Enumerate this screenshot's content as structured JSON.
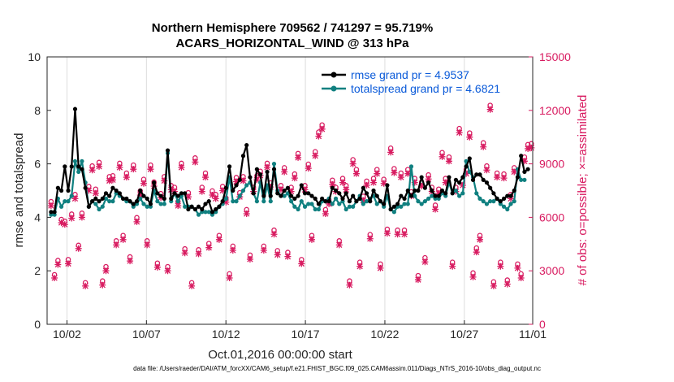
{
  "chart_data": {
    "type": "line",
    "title": "Northern Hemisphere 709562 / 741297 = 95.719%",
    "subtitle": "ACARS_HORIZONTAL_WIND @ 313 hPa",
    "xlabel": "Oct.01,2016 00:00:00 start",
    "ylabel": "rmse and totalspread",
    "y2label": "# of obs: o=possible; ×=assimilated",
    "footnote": "data file: /Users/raeder/DAI/ATM_forcXX/CAM6_setup/f.e21.FHIST_BGC.f09_025.CAM6assim.011/Diags_NTrS_2016-10/obs_diag_output.nc",
    "xlim": [
      0.75,
      31.3
    ],
    "ylim": [
      0,
      10
    ],
    "y2lim": [
      0,
      15000
    ],
    "xticks": [
      2,
      7,
      12,
      17,
      22,
      27,
      32
    ],
    "xtick_labels": [
      "10/02",
      "10/07",
      "10/12",
      "10/17",
      "10/22",
      "10/27",
      "11/01"
    ],
    "yticks": [
      0,
      2,
      4,
      6,
      8,
      10
    ],
    "ytick_labels": [
      "0",
      "2",
      "4",
      "6",
      "8",
      "10"
    ],
    "y2ticks": [
      0,
      3000,
      6000,
      9000,
      12000,
      15000
    ],
    "y2tick_labels": [
      "0",
      "3000",
      "6000",
      "9000",
      "12000",
      "15000"
    ],
    "grid": "vertical",
    "legend_position": "top-right",
    "colors": {
      "rmse": "#000000",
      "spread": "#108080",
      "obs": "#d81b60"
    },
    "series": [
      {
        "name": "rmse grand pr = 4.9537",
        "axis": "left",
        "values": [
          4.2,
          4.2,
          5.1,
          5.0,
          5.9,
          5.0,
          5.9,
          8.05,
          5.9,
          5.8,
          5.1,
          4.4,
          4.6,
          4.7,
          4.6,
          4.7,
          4.9,
          4.8,
          5.1,
          5.0,
          4.9,
          4.7,
          4.7,
          4.6,
          4.5,
          4.6,
          5.0,
          4.8,
          4.7,
          4.5,
          5.3,
          4.9,
          4.8,
          4.7,
          6.5,
          4.7,
          4.9,
          4.8,
          4.9,
          4.9,
          4.3,
          4.4,
          4.3,
          4.4,
          4.3,
          4.5,
          4.6,
          4.2,
          4.3,
          4.4,
          4.6,
          5.1,
          5.9,
          5.0,
          5.2,
          5.4,
          6.3,
          6.7,
          5.5,
          4.9,
          5.8,
          5.6,
          4.8,
          5.7,
          4.8,
          5.8,
          4.9,
          4.8,
          5.0,
          5.1,
          4.8,
          4.7,
          4.8,
          5.2,
          4.9,
          4.9,
          4.8,
          4.7,
          4.5,
          4.7,
          4.6,
          4.6,
          5.1,
          5.0,
          4.9,
          4.7,
          4.9,
          4.6,
          4.8,
          4.6,
          4.7,
          5.1,
          4.9,
          4.6,
          5.0,
          4.8,
          4.6,
          4.5,
          5.2,
          4.3,
          4.4,
          4.5,
          4.8,
          4.7,
          5.0,
          4.8,
          5.0,
          5.0,
          5.5,
          5.1,
          5.3,
          5.0,
          4.8,
          4.8,
          5.0,
          4.9,
          5.5,
          4.9,
          5.4,
          5.3,
          5.5,
          5.9,
          6.2,
          5.4,
          5.6,
          5.6,
          5.4,
          5.3,
          5.1,
          4.9,
          4.7,
          4.6,
          4.7,
          4.8,
          4.8,
          5.0,
          5.5,
          6.3,
          5.7,
          5.8
        ]
      },
      {
        "name": "totalspread grand pr = 4.6821",
        "axis": "left",
        "values": [
          4.1,
          4.1,
          4.7,
          4.4,
          4.6,
          4.6,
          4.8,
          6.1,
          5.7,
          6.1,
          5.3,
          4.4,
          4.6,
          4.5,
          4.3,
          4.4,
          4.7,
          4.6,
          4.6,
          4.9,
          4.8,
          4.7,
          4.6,
          4.6,
          4.4,
          4.5,
          4.7,
          4.5,
          4.4,
          4.4,
          5.0,
          4.6,
          4.5,
          4.5,
          6.4,
          4.6,
          4.9,
          4.6,
          4.8,
          4.4,
          4.4,
          4.4,
          4.3,
          4.1,
          4.2,
          4.2,
          4.2,
          4.1,
          4.2,
          4.4,
          4.5,
          4.7,
          5.5,
          4.6,
          4.6,
          4.8,
          5.0,
          5.2,
          5.3,
          4.9,
          4.6,
          5.3,
          4.6,
          5.2,
          4.6,
          6.0,
          5.0,
          4.8,
          4.8,
          4.9,
          4.6,
          4.4,
          4.3,
          4.6,
          4.4,
          4.5,
          4.5,
          4.3,
          4.3,
          4.6,
          4.6,
          4.7,
          4.5,
          4.7,
          4.5,
          4.6,
          4.3,
          4.4,
          4.4,
          4.6,
          4.8,
          4.5,
          4.6,
          4.7,
          4.8,
          4.5,
          4.6,
          4.4,
          4.8,
          4.3,
          4.2,
          4.4,
          4.4,
          4.5,
          4.5,
          5.9,
          4.8,
          4.6,
          4.5,
          4.6,
          4.7,
          4.8,
          4.7,
          4.7,
          4.9,
          4.8,
          5.3,
          4.9,
          5.0,
          4.8,
          4.9,
          6.1,
          5.7,
          5.5,
          4.9,
          4.7,
          4.6,
          4.5,
          4.6,
          4.6,
          4.7,
          4.5,
          4.4,
          4.3,
          4.5,
          4.6,
          5.8,
          5.4,
          5.4
        ]
      },
      {
        "name": "possible obs",
        "axis": "right",
        "marker": "o",
        "values": [
          6700,
          2600,
          3400,
          5700,
          5600,
          3450,
          6000,
          7100,
          4250,
          6050,
          2150,
          7550,
          8700,
          7400,
          8900,
          2250,
          3050,
          8100,
          8150,
          4500,
          8850,
          4800,
          8300,
          3600,
          8750,
          5800,
          7300,
          7950,
          4500,
          8750,
          7800,
          3250,
          7150,
          8100,
          3050,
          7600,
          7500,
          6700,
          8850,
          4050,
          7200,
          2150,
          9150,
          4000,
          7500,
          8300,
          4350,
          7300,
          7100,
          4800,
          7550,
          6900,
          2650,
          4200,
          8050,
          7200,
          8100,
          6250,
          3700,
          7500,
          8150,
          8400,
          4200,
          8850,
          7750,
          5100,
          3950,
          7600,
          8600,
          3850,
          7500,
          8250,
          9400,
          3450,
          7600,
          8800,
          4800,
          9500,
          10600,
          11000,
          6250,
          6800,
          7900,
          7500,
          4500,
          8000,
          7600,
          2250,
          9050,
          8500,
          3300,
          7000,
          7850,
          4850,
          8000,
          8500,
          3200,
          7950,
          5150,
          9700,
          8550,
          5100,
          8300,
          5100,
          8500,
          7250,
          8000,
          2550,
          7800,
          3550,
          8200,
          7500,
          6500,
          7400,
          9450,
          8000,
          9200,
          3300,
          7500,
          10800,
          7850,
          8500,
          10550,
          2700,
          4100,
          4800,
          10000,
          8700,
          12100,
          2200,
          8300,
          3300,
          8250,
          2300,
          7100,
          8600,
          3200,
          2650,
          9200,
          9900,
          9950
        ]
      },
      {
        "name": "assimilated obs",
        "axis": "right",
        "marker": "x",
        "values": [
          6650,
          2600,
          3350,
          5700,
          5600,
          3400,
          5950,
          7050,
          4250,
          6000,
          2150,
          7500,
          8650,
          7350,
          8850,
          2200,
          3000,
          8050,
          8100,
          4450,
          8800,
          4750,
          8250,
          3550,
          8700,
          5750,
          7250,
          7900,
          4450,
          8700,
          7750,
          3200,
          7100,
          8050,
          3000,
          7550,
          7450,
          6650,
          8800,
          4000,
          7150,
          2150,
          9100,
          3950,
          7450,
          8250,
          4300,
          7250,
          7050,
          4750,
          7500,
          6850,
          2600,
          4150,
          8000,
          7150,
          8050,
          6200,
          3650,
          7450,
          8100,
          8350,
          4150,
          8800,
          7700,
          5050,
          3900,
          7550,
          8550,
          3800,
          7450,
          8200,
          9350,
          3400,
          7550,
          8750,
          4750,
          9450,
          10550,
          10950,
          6200,
          6750,
          7850,
          7450,
          4450,
          7950,
          7550,
          2200,
          9000,
          8450,
          3250,
          6950,
          7800,
          4800,
          7950,
          8450,
          3150,
          7900,
          5100,
          9650,
          8500,
          5050,
          8250,
          5050,
          8450,
          7200,
          7950,
          2500,
          7750,
          3500,
          8150,
          7450,
          6450,
          7350,
          9400,
          7950,
          9150,
          3250,
          7450,
          10750,
          7800,
          8450,
          10500,
          2650,
          4050,
          4750,
          9950,
          8650,
          12050,
          2150,
          8250,
          3250,
          8200,
          2250,
          7050,
          8550,
          3150,
          2600,
          9150,
          9850,
          9900
        ]
      }
    ]
  }
}
